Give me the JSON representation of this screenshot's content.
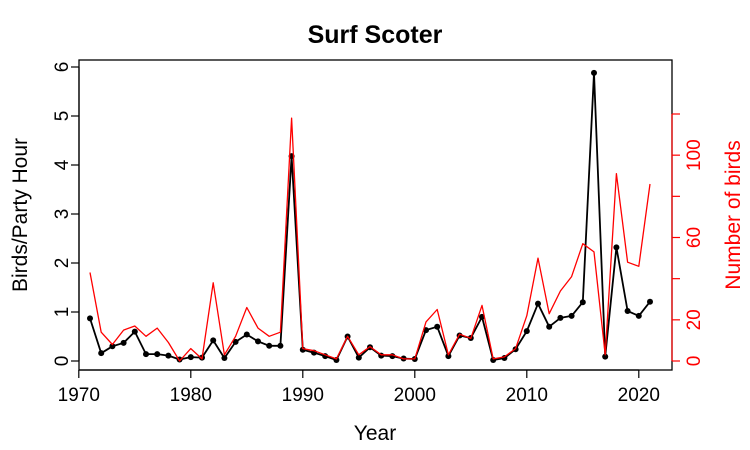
{
  "chart_data": {
    "type": "line",
    "title": "Surf Scoter",
    "xlabel": "Year",
    "ylabel": "Birds/Party Hour",
    "y2label": "Number of birds",
    "xlim": [
      1971,
      2021
    ],
    "ylim": [
      0,
      6
    ],
    "y2lim": [
      0,
      120
    ],
    "x_ticks": [
      1970,
      1980,
      1990,
      2000,
      2010,
      2020
    ],
    "y_ticks": [
      0,
      1,
      2,
      3,
      4,
      5,
      6
    ],
    "y2_ticks": [
      0,
      20,
      60,
      100
    ],
    "grid": false,
    "colors": {
      "primary": "#000000",
      "secondary": "#ff0000"
    },
    "series": [
      {
        "name": "Birds/Party Hour",
        "axis": "left",
        "markers": true,
        "x": [
          1971,
          1972,
          1973,
          1974,
          1975,
          1976,
          1977,
          1978,
          1979,
          1980,
          1981,
          1982,
          1983,
          1984,
          1985,
          1986,
          1987,
          1988,
          1989,
          1990,
          1991,
          1992,
          1993,
          1994,
          1995,
          1996,
          1997,
          1998,
          1999,
          2000,
          2001,
          2002,
          2003,
          2004,
          2005,
          2006,
          2007,
          2008,
          2009,
          2010,
          2011,
          2012,
          2013,
          2014,
          2015,
          2016,
          2017,
          2018,
          2019,
          2020,
          2021
        ],
        "values": [
          0.87,
          0.16,
          0.3,
          0.37,
          0.6,
          0.14,
          0.14,
          0.11,
          0.03,
          0.08,
          0.07,
          0.42,
          0.06,
          0.39,
          0.54,
          0.4,
          0.31,
          0.31,
          4.18,
          0.23,
          0.17,
          0.1,
          0.02,
          0.5,
          0.07,
          0.28,
          0.11,
          0.1,
          0.05,
          0.04,
          0.63,
          0.7,
          0.1,
          0.52,
          0.47,
          0.9,
          0.02,
          0.06,
          0.24,
          0.61,
          1.17,
          0.7,
          0.88,
          0.92,
          1.2,
          5.88,
          0.09,
          2.32,
          1.02,
          0.92,
          1.21
        ]
      },
      {
        "name": "Number of birds",
        "axis": "right",
        "markers": false,
        "x": [
          1971,
          1972,
          1973,
          1974,
          1975,
          1976,
          1977,
          1978,
          1979,
          1980,
          1981,
          1982,
          1983,
          1984,
          1985,
          1986,
          1987,
          1988,
          1989,
          1990,
          1991,
          1992,
          1993,
          1994,
          1995,
          1996,
          1997,
          1998,
          1999,
          2000,
          2001,
          2002,
          2003,
          2004,
          2005,
          2006,
          2007,
          2008,
          2009,
          2010,
          2011,
          2012,
          2013,
          2014,
          2015,
          2016,
          2017,
          2018,
          2019,
          2020,
          2021
        ],
        "values": [
          43,
          14,
          8,
          15,
          17,
          12,
          16,
          9,
          0,
          6,
          1,
          38,
          3,
          12,
          26,
          16,
          12,
          14,
          118,
          6,
          5,
          3,
          1,
          12,
          3,
          7,
          3,
          3,
          1,
          1,
          19,
          25,
          3,
          13,
          11,
          27,
          1,
          2,
          6,
          22,
          50,
          23,
          34,
          41,
          57,
          53,
          3,
          91,
          48,
          46,
          86
        ]
      }
    ]
  }
}
